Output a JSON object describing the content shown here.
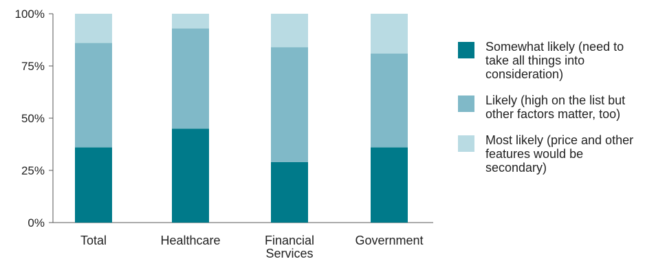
{
  "chart_data": {
    "type": "bar",
    "stacked": true,
    "categories": [
      "Total",
      "Healthcare",
      "Financial Services",
      "Government"
    ],
    "category_lines": [
      [
        "Total"
      ],
      [
        "Healthcare"
      ],
      [
        "Financial",
        "Services"
      ],
      [
        "Government"
      ]
    ],
    "series": [
      {
        "name": "Somewhat likely (need to take all things into consideration)",
        "color": "#007a8a",
        "values": [
          36,
          45,
          29,
          36
        ]
      },
      {
        "name": "Likely (high on the list but other factors matter, too)",
        "color": "#80b9c8",
        "values": [
          50,
          48,
          55,
          45
        ]
      },
      {
        "name": "Most likely (price and other features would be secondary)",
        "color": "#b9dbe3",
        "values": [
          14,
          7,
          16,
          19
        ]
      }
    ],
    "yticks": [
      "0%",
      "25%",
      "50%",
      "75%",
      "100%"
    ],
    "ylim": [
      0,
      100
    ],
    "legend_position": "right",
    "grid": false
  }
}
